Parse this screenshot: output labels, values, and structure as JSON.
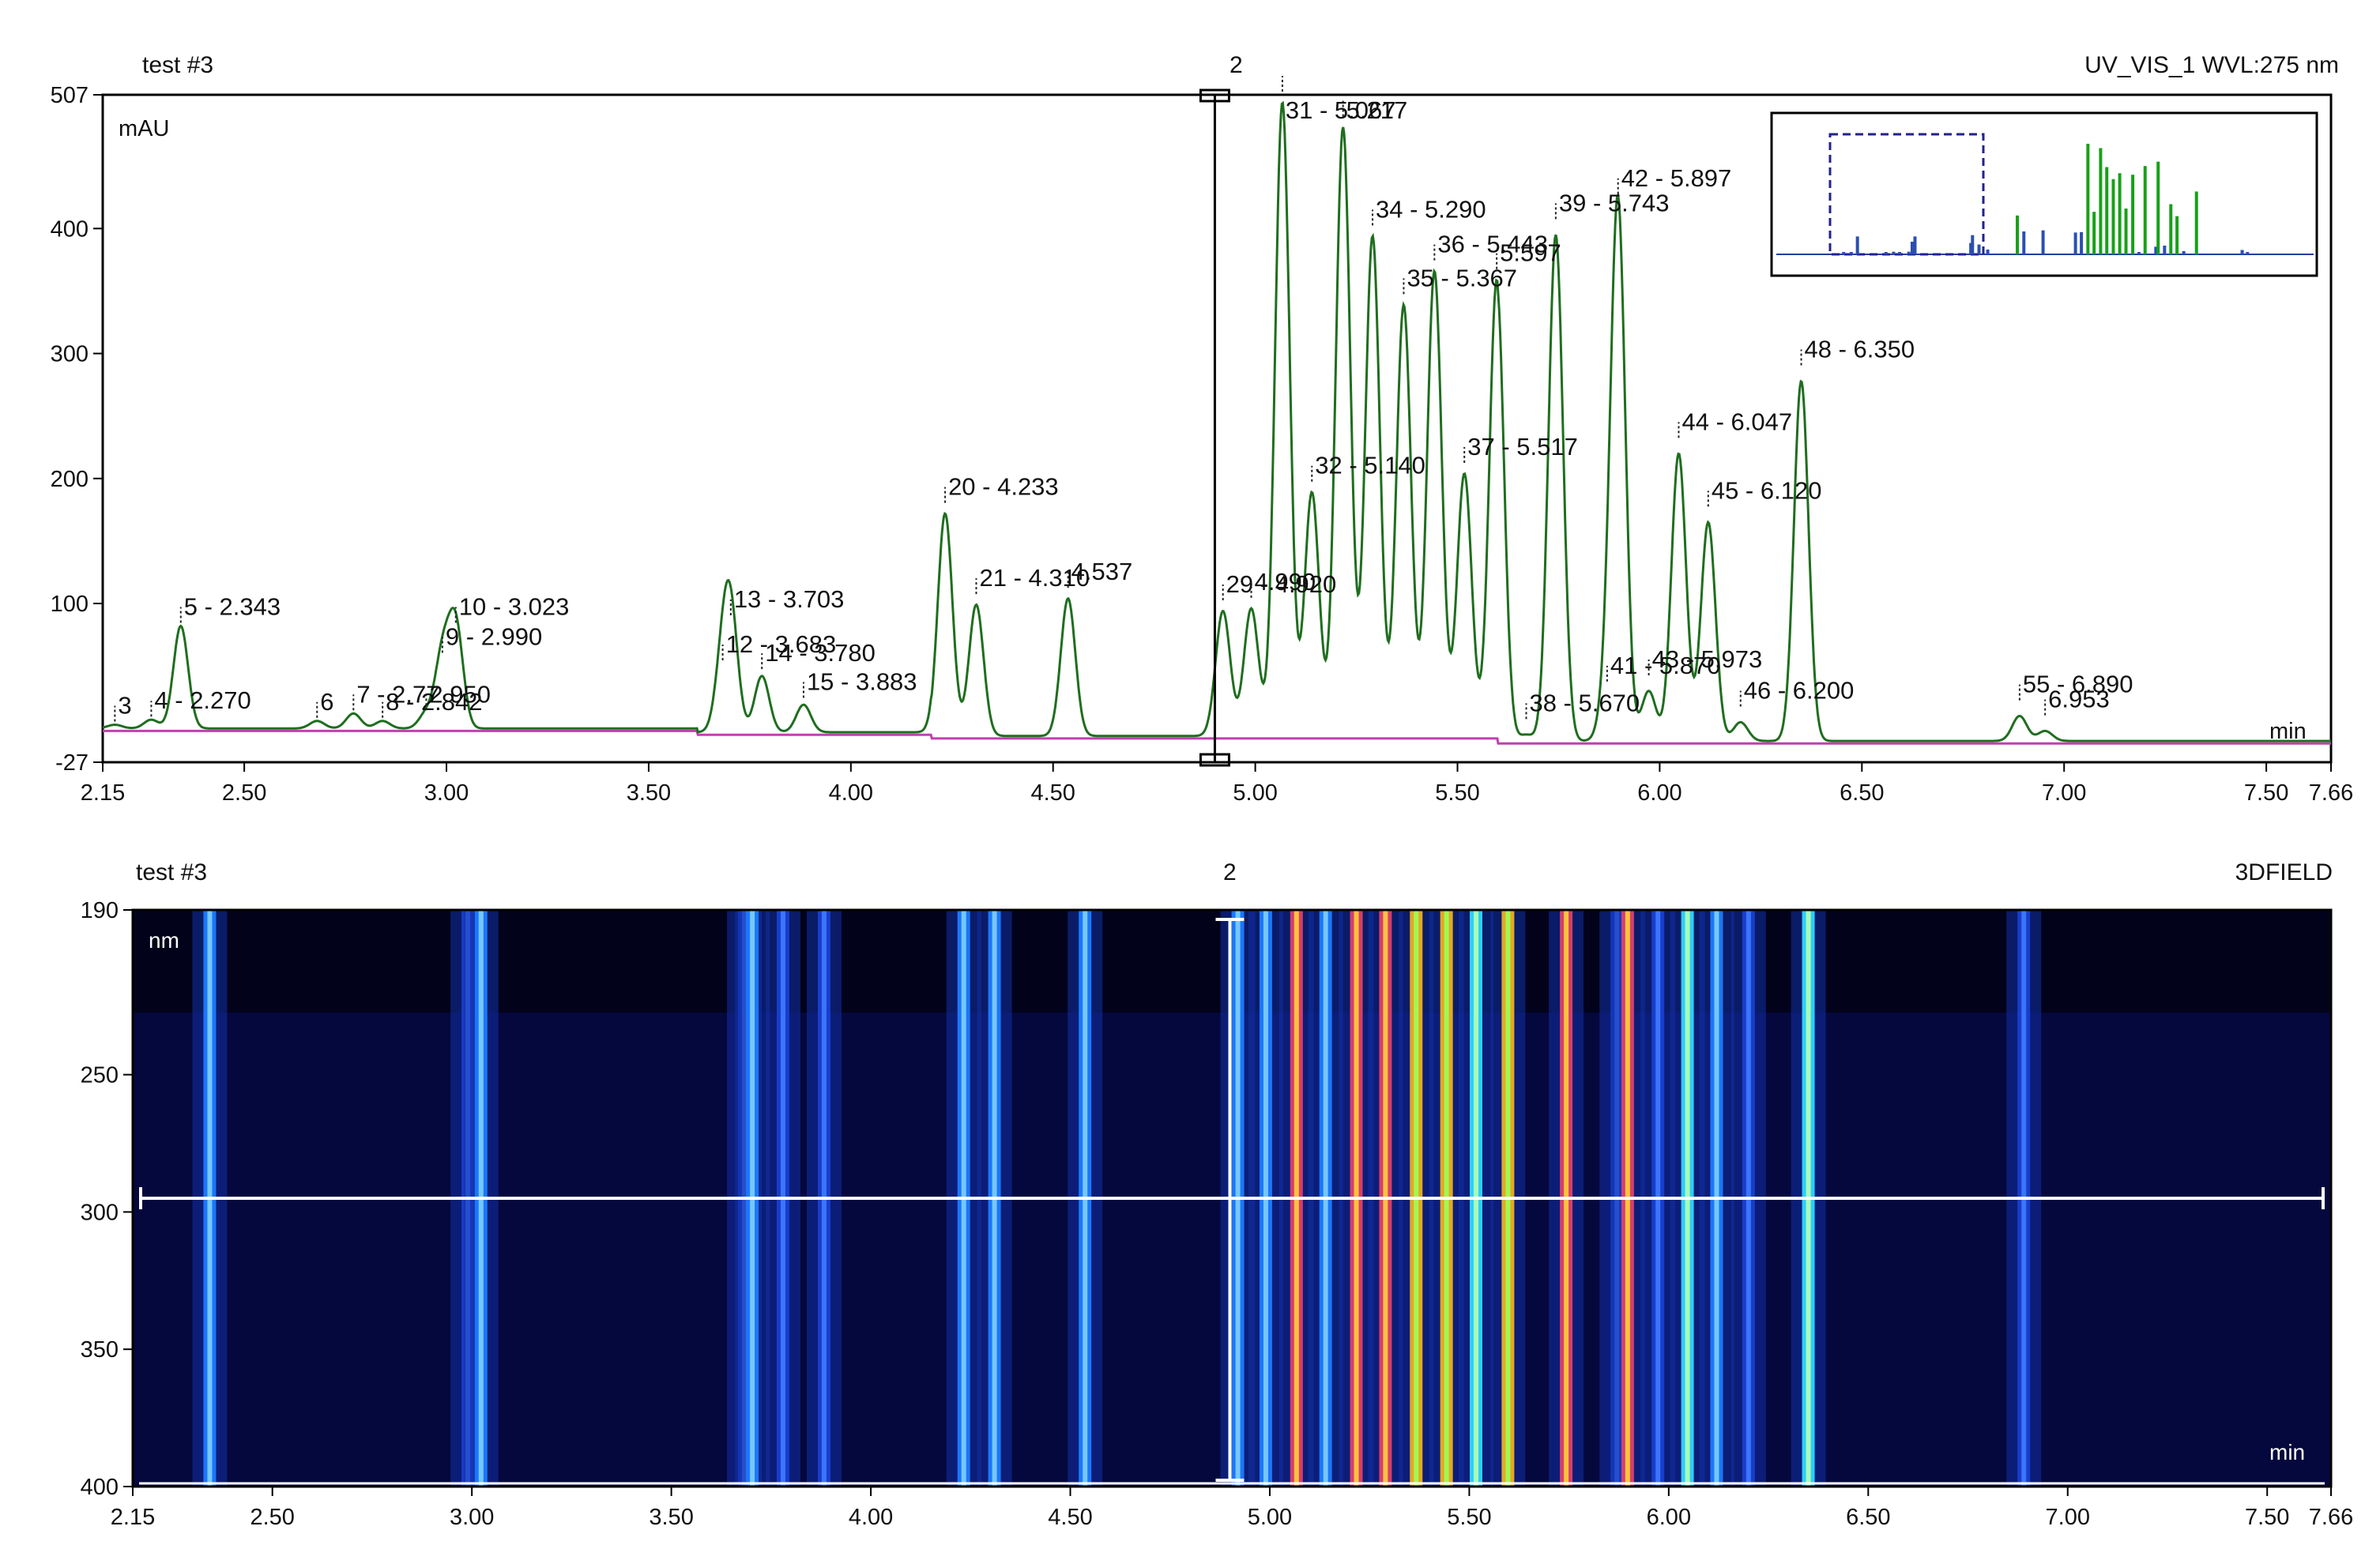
{
  "colors": {
    "trace": "#1f6e1f",
    "baseline": "#c23fb1",
    "frame": "#000000",
    "field_background": "#05083d",
    "cursor": "#ffffff",
    "inset_fill": "#17a117",
    "inset_box": "#22228a"
  },
  "top_panel": {
    "sample": "test #3",
    "cursor_label": "2",
    "channel": "UV_VIS_1 WVL:275 nm",
    "y_unit": "mAU",
    "x_unit": "min"
  },
  "bottom_panel": {
    "sample": "test #3",
    "cursor_label": "2",
    "channel": "3DFIELD",
    "y_unit": "nm",
    "x_unit": "min"
  },
  "chart_data": [
    {
      "type": "line",
      "title": "UV_VIS_1 WVL:275 nm",
      "ylabel": "mAU",
      "xlabel": "min",
      "xlim": [
        2.15,
        7.66
      ],
      "ylim": [
        -27,
        507
      ],
      "x_ticks": [
        "2.15",
        "2.50",
        "3.00",
        "3.50",
        "4.00",
        "4.50",
        "5.00",
        "5.50",
        "6.00",
        "6.50",
        "7.00",
        "7.50",
        "7.66"
      ],
      "y_ticks": [
        "507",
        "400",
        "300",
        "200",
        "100",
        "-27"
      ],
      "cursor_x": 4.9,
      "peaks": [
        {
          "label": "3",
          "x": 2.18,
          "y": 3
        },
        {
          "label": "4 - 2.270",
          "x": 2.27,
          "y": 7
        },
        {
          "label": "5 - 2.343",
          "x": 2.343,
          "y": 82
        },
        {
          "label": "6",
          "x": 2.68,
          "y": 6
        },
        {
          "label": "7 - 2.77",
          "x": 2.77,
          "y": 12
        },
        {
          "label": "8 - 2.842",
          "x": 2.842,
          "y": 6
        },
        {
          "label": "2.950",
          "x": 2.95,
          "y": 12
        },
        {
          "label": "9 - 2.990",
          "x": 2.99,
          "y": 58
        },
        {
          "label": "10 - 3.023",
          "x": 3.023,
          "y": 82
        },
        {
          "label": "12 - 3.683",
          "x": 3.683,
          "y": 52
        },
        {
          "label": "13 - 3.703",
          "x": 3.703,
          "y": 88
        },
        {
          "label": "14 - 3.780",
          "x": 3.78,
          "y": 45
        },
        {
          "label": "15 - 3.883",
          "x": 3.883,
          "y": 22
        },
        {
          "label": "20 - 4.233",
          "x": 4.233,
          "y": 178
        },
        {
          "label": "21 - 4.310",
          "x": 4.31,
          "y": 105
        },
        {
          "label": "4.537",
          "x": 4.537,
          "y": 110
        },
        {
          "label": "29 - 4.920",
          "x": 4.92,
          "y": 100
        },
        {
          "label": "4.990",
          "x": 4.99,
          "y": 102
        },
        {
          "label": "31 - 5.067",
          "x": 5.067,
          "y": 507
        },
        {
          "label": "32 - 5.140",
          "x": 5.14,
          "y": 195
        },
        {
          "label": "5.217",
          "x": 5.217,
          "y": 487
        },
        {
          "label": "34 - 5.290",
          "x": 5.29,
          "y": 400
        },
        {
          "label": "35 - 5.367",
          "x": 5.367,
          "y": 345
        },
        {
          "label": "36 - 5.443",
          "x": 5.443,
          "y": 372
        },
        {
          "label": "37 - 5.517",
          "x": 5.517,
          "y": 210
        },
        {
          "label": "5.597",
          "x": 5.597,
          "y": 365
        },
        {
          "label": "38 - 5.670",
          "x": 5.67,
          "y": 5
        },
        {
          "label": "39 - 5.743",
          "x": 5.743,
          "y": 405
        },
        {
          "label": "41 - 5.870",
          "x": 5.87,
          "y": 35
        },
        {
          "label": "42 - 5.897",
          "x": 5.897,
          "y": 425
        },
        {
          "label": "43 - 5.973",
          "x": 5.973,
          "y": 40
        },
        {
          "label": "44 - 6.047",
          "x": 6.047,
          "y": 230
        },
        {
          "label": "45 - 6.120",
          "x": 6.12,
          "y": 175
        },
        {
          "label": "46 - 6.200",
          "x": 6.2,
          "y": 15
        },
        {
          "label": "48 - 6.350",
          "x": 6.35,
          "y": 288
        },
        {
          "label": "55 - 6.890",
          "x": 6.89,
          "y": 20
        },
        {
          "label": "6.953",
          "x": 6.953,
          "y": 8
        }
      ]
    },
    {
      "type": "heatmap",
      "title": "3DFIELD",
      "ylabel": "nm",
      "xlabel": "min",
      "xlim": [
        2.15,
        7.66
      ],
      "ylim": [
        400,
        190
      ],
      "x_ticks": [
        "2.15",
        "2.50",
        "3.00",
        "3.50",
        "4.00",
        "4.50",
        "5.00",
        "5.50",
        "6.00",
        "6.50",
        "7.00",
        "7.50",
        "7.66"
      ],
      "y_ticks": [
        "190",
        "250",
        "300",
        "350",
        "400"
      ],
      "cursor_x": 4.9,
      "cursor_y_nm": 295
    }
  ]
}
